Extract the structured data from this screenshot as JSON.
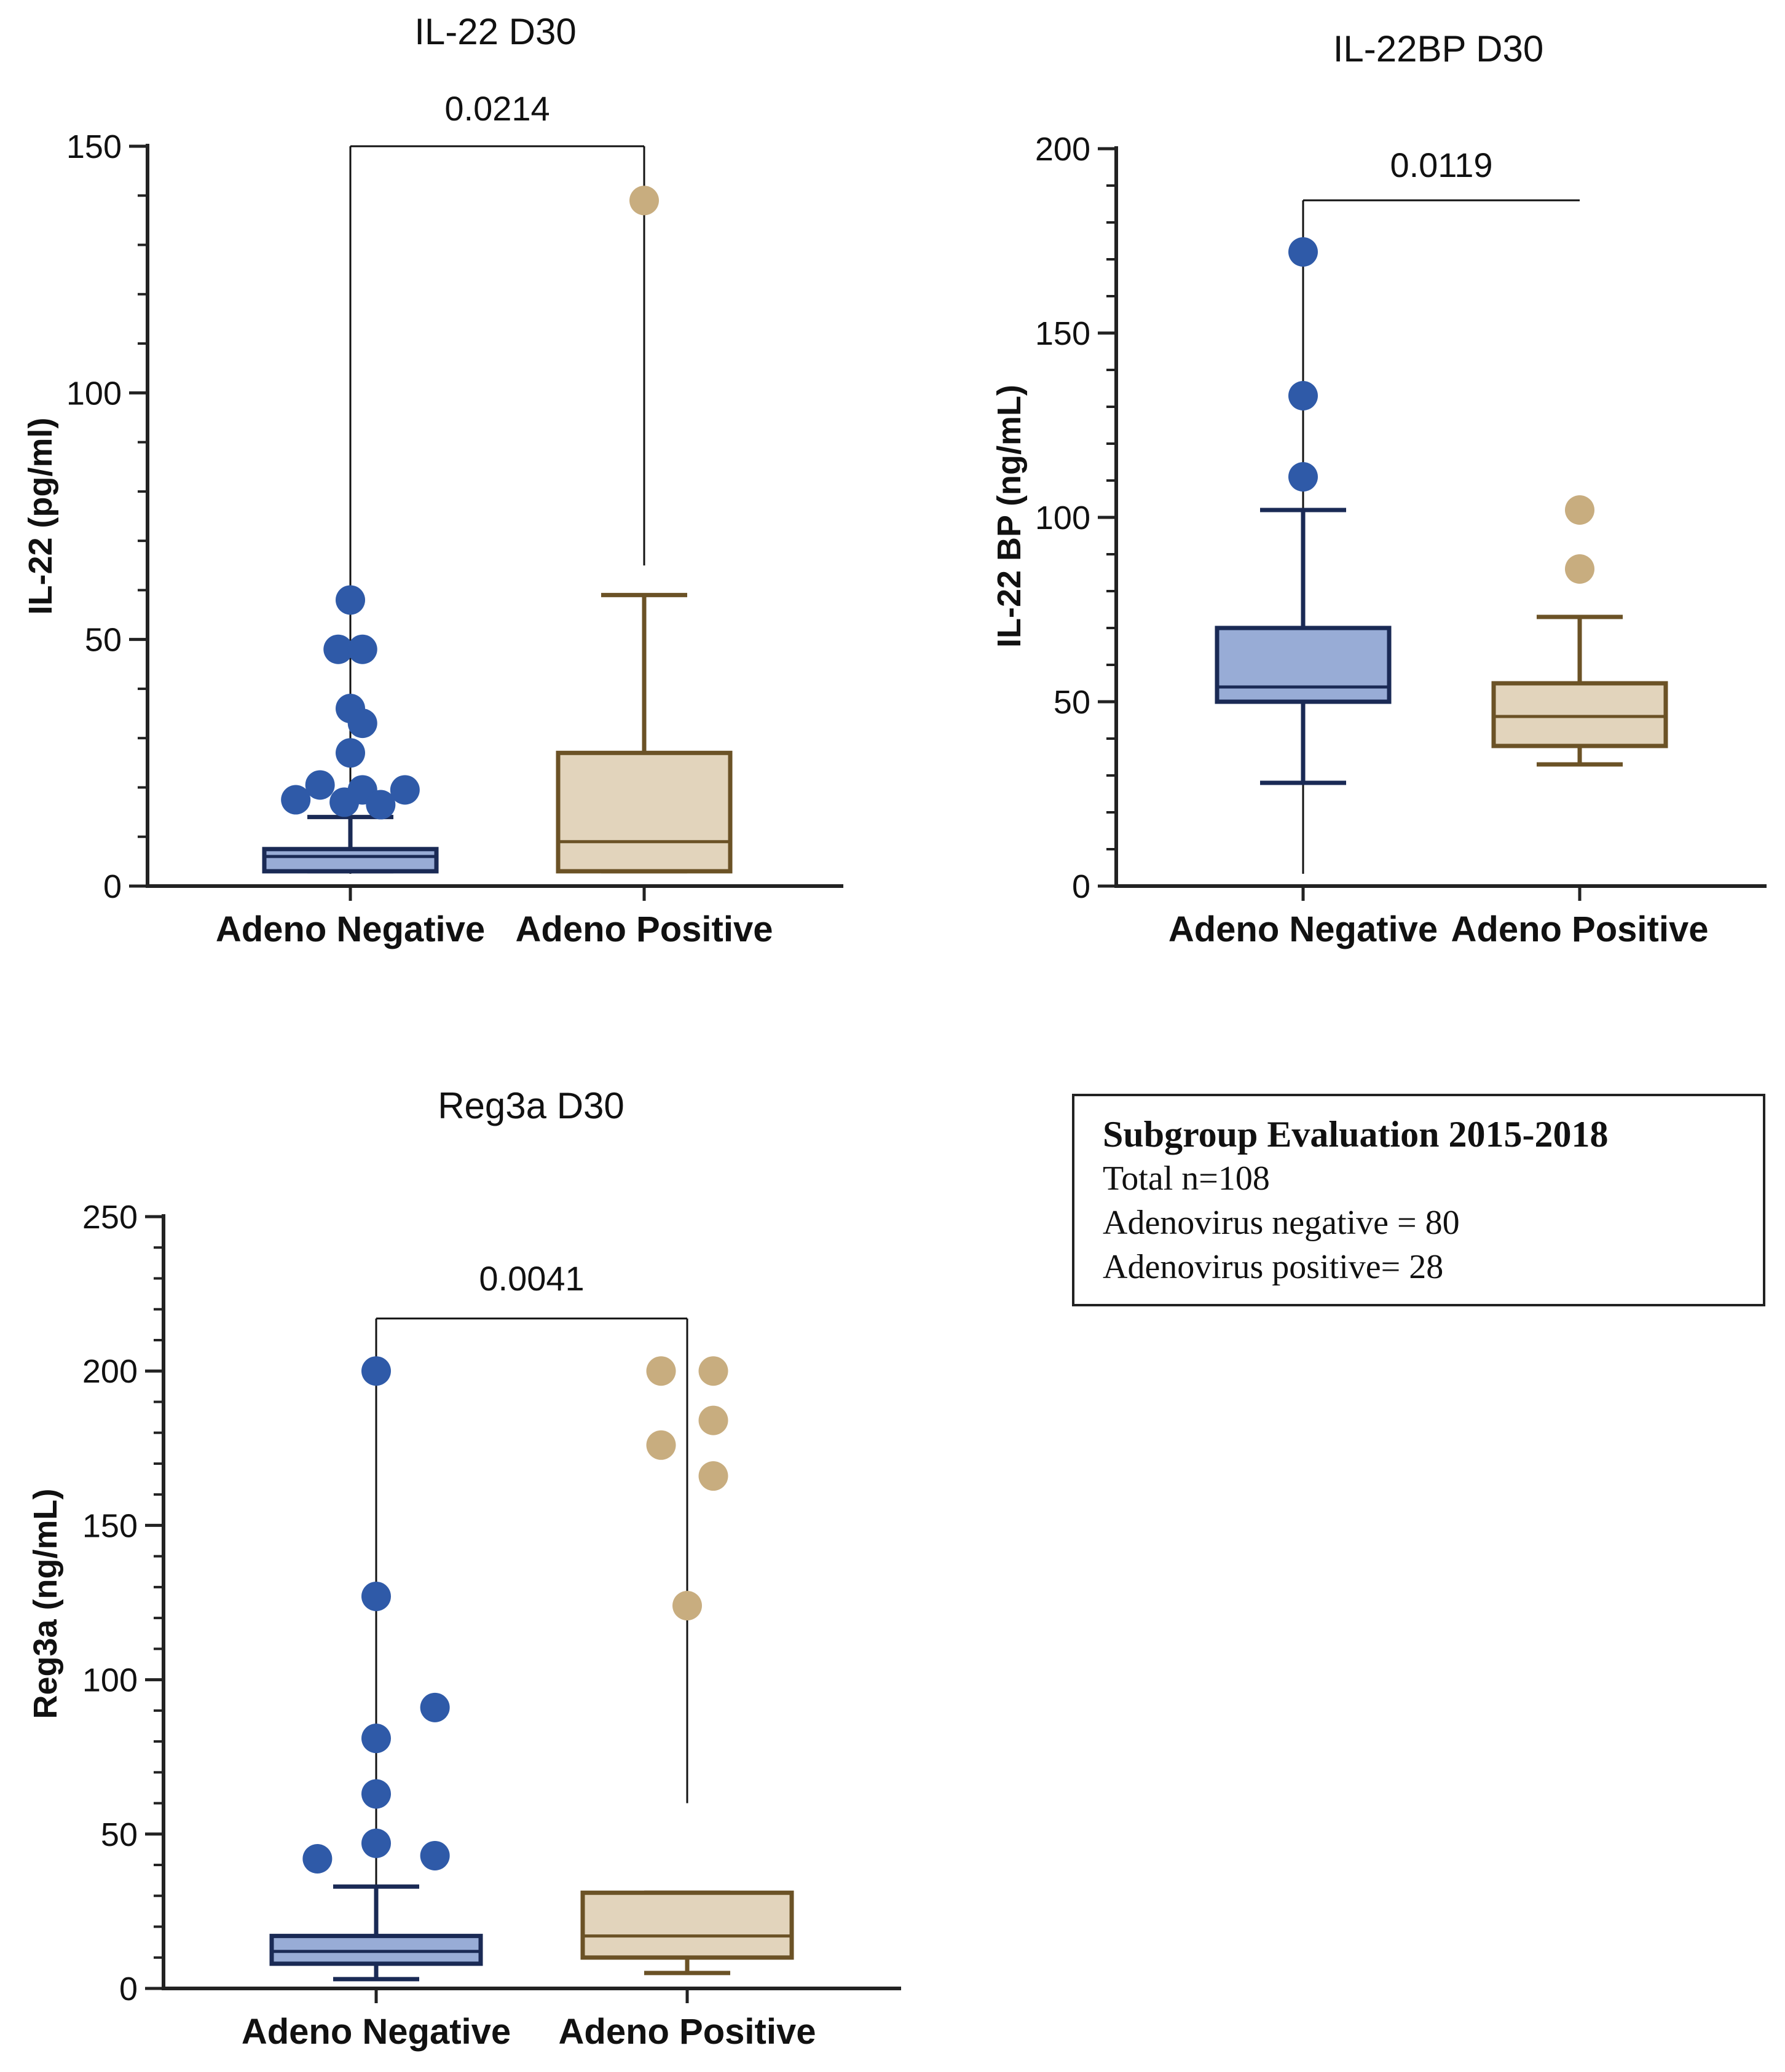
{
  "colors": {
    "neg_dot": "#2f5aa8",
    "neg_box_fill": "#98acd6",
    "neg_box_stroke": "#1a2a55",
    "pos_dot": "#c8ad7f",
    "pos_box_fill": "#e2d4bc",
    "pos_box_stroke": "#6b5226",
    "axis": "#222222"
  },
  "chart_data": [
    {
      "type": "box",
      "title": "IL-22 D30",
      "ylabel": "IL-22 (pg/ml)",
      "categories": [
        "Adeno Negative",
        "Adeno Positive"
      ],
      "ylim": [
        0,
        150
      ],
      "yticks": [
        0,
        50,
        100,
        150
      ],
      "minor_step": 10,
      "pvalue": "0.0214",
      "bracket_y": 150,
      "bracket_drop": [
        150,
        65
      ],
      "series": [
        {
          "name": "Adeno Negative",
          "box": {
            "whisker_low": 3,
            "q1": 3,
            "median": 6,
            "q3": 7.5,
            "whisker_high": 14
          },
          "outliers": [
            [
              0,
              58
            ],
            [
              -0.1,
              48
            ],
            [
              0.1,
              48
            ],
            [
              0,
              36
            ],
            [
              0.1,
              33
            ],
            [
              0,
              27
            ],
            [
              -0.45,
              17.5
            ],
            [
              -0.25,
              20.5
            ],
            [
              -0.05,
              17
            ],
            [
              0.1,
              19.5
            ],
            [
              0.25,
              16.5
            ],
            [
              0.45,
              19.5
            ]
          ]
        },
        {
          "name": "Adeno Positive",
          "box": {
            "whisker_low": 3,
            "q1": 3,
            "median": 9,
            "q3": 27,
            "whisker_high": 59
          },
          "outliers": [
            [
              0,
              139
            ]
          ]
        }
      ]
    },
    {
      "type": "box",
      "title": "IL-22BP D30",
      "ylabel": "IL-22 BP (ng/mL)",
      "categories": [
        "Adeno Negative",
        "Adeno Positive"
      ],
      "ylim": [
        0,
        200
      ],
      "yticks": [
        0,
        50,
        100,
        150,
        200
      ],
      "minor_step": 10,
      "pvalue": "0.0119",
      "bracket_y": 186,
      "bracket_drop": [
        186,
        186
      ],
      "series": [
        {
          "name": "Adeno Negative",
          "box": {
            "whisker_low": 28,
            "q1": 50,
            "median": 54,
            "q3": 70,
            "whisker_high": 102
          },
          "outliers": [
            [
              0,
              172
            ],
            [
              0,
              133
            ],
            [
              0,
              111
            ]
          ]
        },
        {
          "name": "Adeno Positive",
          "box": {
            "whisker_low": 33,
            "q1": 38,
            "median": 46,
            "q3": 55,
            "whisker_high": 73
          },
          "outliers": [
            [
              0,
              102
            ],
            [
              0,
              86
            ]
          ]
        }
      ]
    },
    {
      "type": "box",
      "title": "Reg3a D30",
      "ylabel": "Reg3a (ng/mL)",
      "categories": [
        "Adeno Negative",
        "Adeno Positive"
      ],
      "ylim": [
        0,
        250
      ],
      "yticks": [
        0,
        50,
        100,
        150,
        200,
        250
      ],
      "minor_step": 10,
      "pvalue": "0.0041",
      "bracket_y": 217,
      "bracket_drop": [
        200,
        60
      ],
      "series": [
        {
          "name": "Adeno Negative",
          "box": {
            "whisker_low": 3,
            "q1": 8,
            "median": 12,
            "q3": 17,
            "whisker_high": 33
          },
          "outliers": [
            [
              0,
              200
            ],
            [
              0,
              127
            ],
            [
              0,
              81
            ],
            [
              0.45,
              91
            ],
            [
              0,
              63
            ],
            [
              -0.45,
              42
            ],
            [
              0,
              47
            ],
            [
              0.45,
              43
            ]
          ]
        },
        {
          "name": "Adeno Positive",
          "box": {
            "whisker_low": 5,
            "q1": 10,
            "median": 17,
            "q3": 31,
            "whisker_high": 31
          },
          "outliers": [
            [
              -0.2,
              200
            ],
            [
              0.2,
              200
            ],
            [
              0.2,
              184
            ],
            [
              -0.2,
              176
            ],
            [
              0.2,
              166
            ],
            [
              0,
              124
            ]
          ]
        }
      ]
    }
  ],
  "legend": {
    "title": "Subgroup Evaluation 2015-2018",
    "lines": [
      "Total n=108",
      "Adenovirus negative = 80",
      "Adenovirus positive= 28"
    ]
  }
}
